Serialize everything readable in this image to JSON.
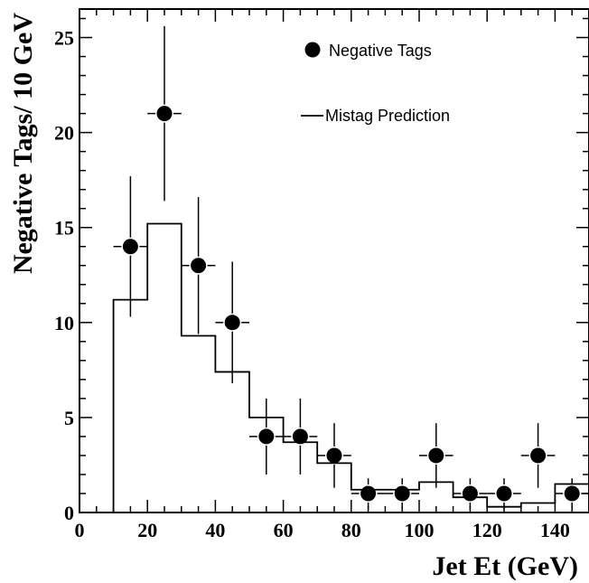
{
  "chart_data": {
    "type": "scatter",
    "xlabel": "Jet Et (GeV)",
    "ylabel": "Negative Tags/ 10 GeV",
    "xlim": [
      0,
      150
    ],
    "ylim": [
      0,
      26.5
    ],
    "xticks": [
      0,
      20,
      40,
      60,
      80,
      100,
      120,
      140
    ],
    "yticks": [
      0,
      5,
      10,
      15,
      20,
      25
    ],
    "grid": false,
    "legend_position": "top-right",
    "legend": {
      "points_label": "Negative Tags",
      "line_label": "Mistag Prediction"
    },
    "series": [
      {
        "name": "Negative Tags",
        "kind": "points-with-errors",
        "x": [
          15,
          25,
          35,
          45,
          55,
          65,
          75,
          85,
          95,
          105,
          115,
          125,
          135,
          145
        ],
        "y": [
          14,
          21,
          13,
          10,
          4,
          4,
          3,
          1,
          1,
          3,
          1,
          1,
          3,
          1
        ],
        "xerr": [
          5,
          5,
          5,
          5,
          5,
          5,
          5,
          5,
          5,
          5,
          5,
          5,
          5,
          5
        ],
        "yerr_low": [
          3.7,
          4.6,
          3.6,
          3.2,
          2.0,
          2.0,
          1.7,
          0.8,
          0.8,
          1.7,
          0.8,
          0.8,
          1.7,
          0.8
        ],
        "yerr_high": [
          3.7,
          4.6,
          3.6,
          3.2,
          2.0,
          2.0,
          1.7,
          0.8,
          0.8,
          1.7,
          0.8,
          0.8,
          1.7,
          0.8
        ]
      },
      {
        "name": "Mistag Prediction",
        "kind": "step",
        "bin_edges": [
          10,
          20,
          30,
          40,
          50,
          60,
          70,
          80,
          90,
          100,
          110,
          120,
          130,
          140,
          150
        ],
        "values": [
          11.2,
          15.2,
          9.3,
          7.4,
          5.0,
          3.7,
          2.6,
          1.2,
          1.2,
          1.6,
          0.8,
          0.3,
          0.5,
          1.5
        ]
      }
    ]
  },
  "style": {
    "ink": "#000000",
    "background": "#ffffff"
  }
}
